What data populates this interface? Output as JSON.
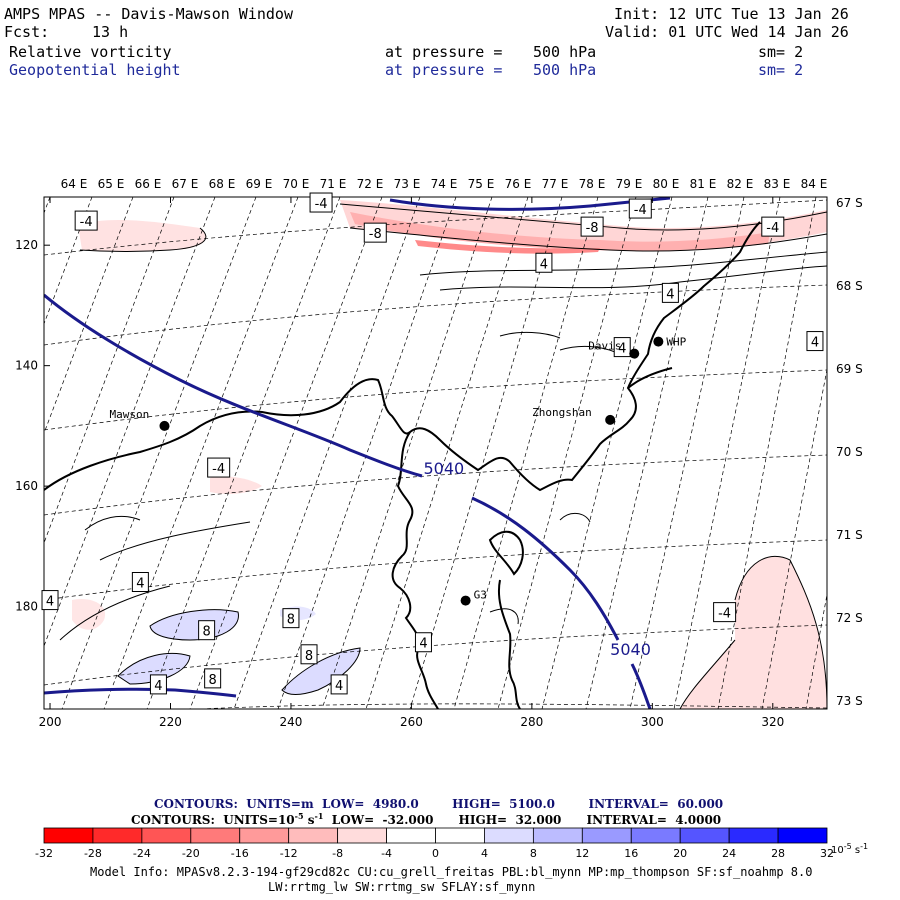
{
  "header": {
    "title": "AMPS MPAS -- Davis-Mawson Window",
    "init": "Init: 12 UTC Tue 13 Jan 26",
    "fcst_label": "Fcst:",
    "fcst_value": "13 h",
    "valid": "Valid: 01 UTC Wed 14 Jan 26",
    "field1_name": "Relative vorticity",
    "field1_level": "at pressure =",
    "field1_value": "500 hPa",
    "field1_sm": "sm= 2",
    "field2_name": "Geopotential height",
    "field2_level": "at pressure =",
    "field2_value": "500 hPa",
    "field2_sm": "sm= 2"
  },
  "colors": {
    "height_contour": "#1a1a8c",
    "coast": "#000000",
    "header_blue": "#1f2a9a",
    "title_navy": "#101070"
  },
  "chart_data": {
    "type": "contour map",
    "x_ticks": [
      "200",
      "220",
      "240",
      "260",
      "280",
      "300",
      "320"
    ],
    "y_ticks": [
      "120",
      "140",
      "160",
      "180"
    ],
    "xlim": [
      199,
      329
    ],
    "ylim": [
      112,
      197
    ],
    "lon_labels": [
      "64 E",
      "65 E",
      "66 E",
      "67 E",
      "68 E",
      "69 E",
      "70 E",
      "71 E",
      "72 E",
      "73 E",
      "74 E",
      "75 E",
      "76 E",
      "77 E",
      "78 E",
      "79 E",
      "80 E",
      "81 E",
      "82 E",
      "83 E",
      "84 E"
    ],
    "lat_labels": [
      "67 S",
      "68 S",
      "69 S",
      "70 S",
      "71 S",
      "72 S",
      "73 S"
    ],
    "height_contour_labels": [
      {
        "text": "5040",
        "x": 262,
        "y": 157
      },
      {
        "text": "5040",
        "x": 293,
        "y": 187
      }
    ],
    "vorticity_labels": [
      {
        "text": "-4",
        "x": 206,
        "y": 116
      },
      {
        "text": "-4",
        "x": 245,
        "y": 113
      },
      {
        "text": "-8",
        "x": 254,
        "y": 118
      },
      {
        "text": "-8",
        "x": 290,
        "y": 117
      },
      {
        "text": "-4",
        "x": 298,
        "y": 114
      },
      {
        "text": "-4",
        "x": 320,
        "y": 117
      },
      {
        "text": "4",
        "x": 282,
        "y": 123
      },
      {
        "text": "4",
        "x": 303,
        "y": 128
      },
      {
        "text": "4",
        "x": 295,
        "y": 137
      },
      {
        "text": "4",
        "x": 327,
        "y": 136
      },
      {
        "text": "-4",
        "x": 228,
        "y": 157
      },
      {
        "text": "4",
        "x": 215,
        "y": 176
      },
      {
        "text": "4",
        "x": 200,
        "y": 179
      },
      {
        "text": "8",
        "x": 240,
        "y": 182
      },
      {
        "text": "8",
        "x": 226,
        "y": 184
      },
      {
        "text": "8",
        "x": 243,
        "y": 188
      },
      {
        "text": "4",
        "x": 262,
        "y": 186
      },
      {
        "text": "4",
        "x": 218,
        "y": 193
      },
      {
        "text": "8",
        "x": 227,
        "y": 192
      },
      {
        "text": "4",
        "x": 248,
        "y": 193
      },
      {
        "text": "-4",
        "x": 312,
        "y": 181
      }
    ],
    "stations": [
      {
        "name": "Mawson",
        "x": 219,
        "y": 150
      },
      {
        "name": "Zhongshan",
        "x": 293,
        "y": 149
      },
      {
        "name": "Davis",
        "x": 297,
        "y": 138
      },
      {
        "name": "WHP",
        "x": 301,
        "y": 136
      },
      {
        "name": "G3",
        "x": 269,
        "y": 179
      }
    ]
  },
  "contour_info": {
    "line1_label": "CONTOURS:",
    "line1_units": "UNITS=m",
    "line1_low": "LOW=",
    "line1_low_val": "4980.0",
    "line1_high": "HIGH=",
    "line1_high_val": "5100.0",
    "line1_int": "INTERVAL=",
    "line1_int_val": "60.000",
    "line2_label": "CONTOURS:",
    "line2_units": "UNITS=10",
    "line2_units_exp": "-5",
    "line2_units_tail": "s",
    "line2_units_tail_exp": "-1",
    "line2_low": "LOW=",
    "line2_low_val": "-32.000",
    "line2_high": "HIGH=",
    "line2_high_val": "32.000",
    "line2_int": "INTERVAL=",
    "line2_int_val": "4.0000"
  },
  "colorbar": {
    "colors": [
      "#ff0000",
      "#ff2a2a",
      "#ff5555",
      "#ff7a7a",
      "#ff9a9a",
      "#ffbcbc",
      "#ffdcdc",
      "#ffffff",
      "#ffffff",
      "#dcdcff",
      "#bcbcff",
      "#9a9aff",
      "#7a7aff",
      "#5555ff",
      "#2a2aff",
      "#0000ff"
    ],
    "labels": [
      "-32",
      "-28",
      "-24",
      "-20",
      "-16",
      "-12",
      "-8",
      "-4",
      "0",
      "4",
      "8",
      "12",
      "16",
      "20",
      "24",
      "28",
      "32"
    ],
    "unit_base": "10",
    "unit_exp": "-5",
    "unit_s": "s",
    "unit_s_exp": "-1"
  },
  "footer": {
    "line1": "Model Info: MPASv8.2.3-194-gf29cd82c CU:cu_grell_freitas PBL:bl_mynn MP:mp_thompson SF:sf_noahmp 8.0",
    "line2": "LW:rrtmg_lw SW:rrtmg_sw SFLAY:sf_mynn"
  }
}
